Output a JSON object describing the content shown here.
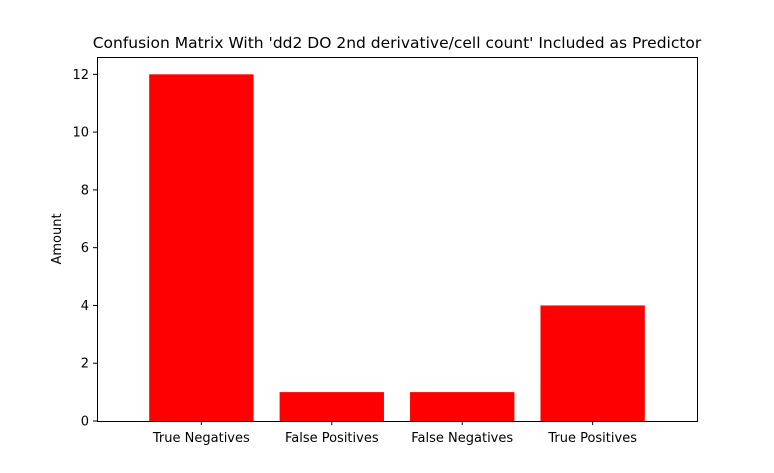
{
  "chart_data": {
    "type": "bar",
    "title": "Confusion Matrix With 'dd2 DO 2nd derivative/cell count' Included as Predictor",
    "xlabel": "",
    "ylabel": "Amount",
    "categories": [
      "True Negatives",
      "False Positives",
      "False Negatives",
      "True Positives"
    ],
    "values": [
      12,
      1,
      1,
      4
    ],
    "ylim": [
      0,
      12.6
    ],
    "yticks": [
      0,
      2,
      4,
      6,
      8,
      10,
      12
    ],
    "bar_color": "#ff0000",
    "grid": false,
    "legend": "none"
  }
}
